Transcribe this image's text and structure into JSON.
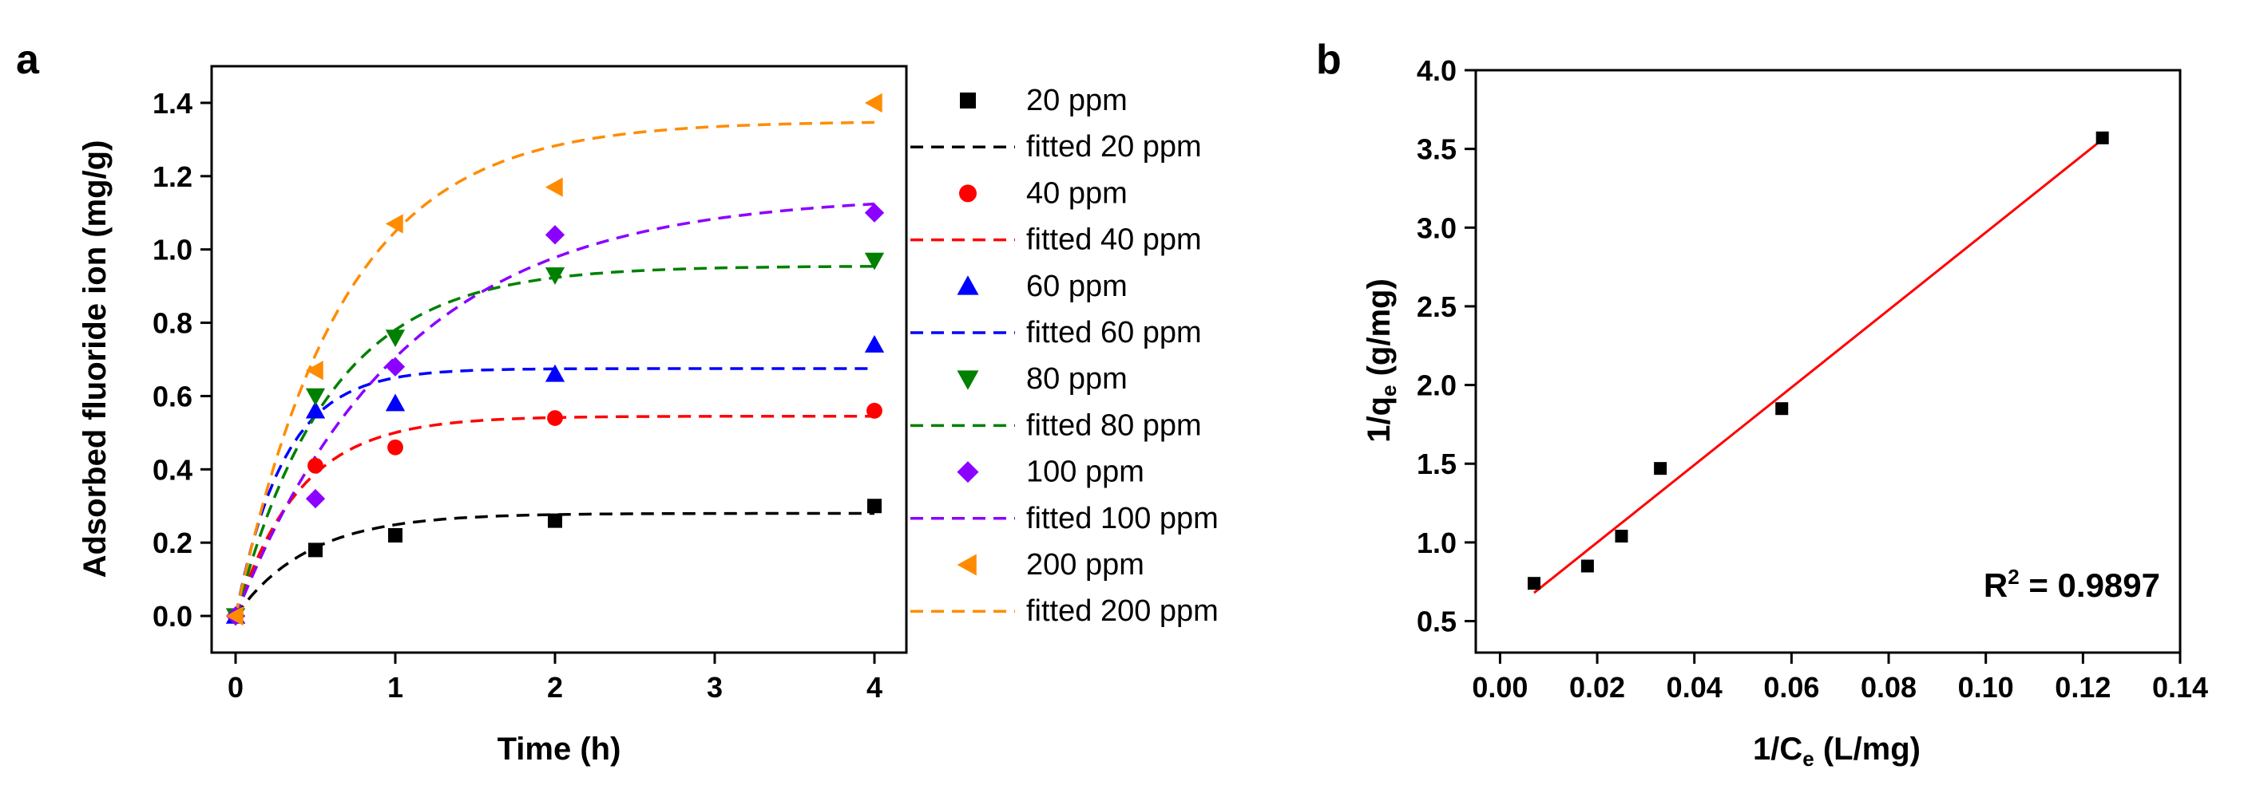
{
  "chart_data": [
    {
      "panel_label": "a",
      "type": "scatter",
      "xlabel": "Time (h)",
      "ylabel": "Adsorbed fluoride ion (mg/g)",
      "xlim": [
        -0.15,
        4.2
      ],
      "ylim": [
        -0.1,
        1.5
      ],
      "x_ticks": [
        0,
        1,
        2,
        3,
        4
      ],
      "x_tick_labels": [
        "0",
        "1",
        "2",
        "3",
        "4"
      ],
      "y_ticks": [
        0.0,
        0.2,
        0.4,
        0.6,
        0.8,
        1.0,
        1.2,
        1.4
      ],
      "y_tick_labels": [
        "0.0",
        "0.2",
        "0.4",
        "0.6",
        "0.8",
        "1.0",
        "1.2",
        "1.4"
      ],
      "series": [
        {
          "name": "20 ppm",
          "fit_name": "fitted 20 ppm",
          "marker": "square",
          "color": "#000000",
          "x": [
            0,
            0.5,
            1,
            2,
            4
          ],
          "y": [
            0.0,
            0.18,
            0.22,
            0.26,
            0.3
          ],
          "fit_qe": 0.28,
          "fit_k": 2.2
        },
        {
          "name": "40 ppm",
          "fit_name": "fitted 40 ppm",
          "marker": "circle",
          "color": "#ff0000",
          "x": [
            0,
            0.5,
            1,
            2,
            4
          ],
          "y": [
            0.0,
            0.41,
            0.46,
            0.54,
            0.56
          ],
          "fit_qe": 0.545,
          "fit_k": 2.5
        },
        {
          "name": "60 ppm",
          "fit_name": "fitted 60 ppm",
          "marker": "triangle-up",
          "color": "#0000ff",
          "x": [
            0,
            0.5,
            1,
            2,
            4
          ],
          "y": [
            0.0,
            0.56,
            0.58,
            0.66,
            0.74
          ],
          "fit_qe": 0.675,
          "fit_k": 3.3
        },
        {
          "name": "80 ppm",
          "fit_name": "fitted 80 ppm",
          "marker": "triangle-down",
          "color": "#008000",
          "x": [
            0,
            0.5,
            1,
            2,
            4
          ],
          "y": [
            0.0,
            0.6,
            0.76,
            0.93,
            0.97
          ],
          "fit_qe": 0.955,
          "fit_k": 1.7
        },
        {
          "name": "100 ppm",
          "fit_name": "fitted 100 ppm",
          "marker": "diamond",
          "color": "#8b00ff",
          "x": [
            0,
            0.5,
            1,
            2,
            4
          ],
          "y": [
            0.0,
            0.32,
            0.68,
            1.04,
            1.1
          ],
          "fit_qe": 1.15,
          "fit_k": 0.95
        },
        {
          "name": "200 ppm",
          "fit_name": "fitted 200 ppm",
          "marker": "triangle-left",
          "color": "#ff8c00",
          "x": [
            0,
            0.5,
            1,
            2,
            4
          ],
          "y": [
            0.0,
            0.67,
            1.07,
            1.17,
            1.4
          ],
          "fit_qe": 1.35,
          "fit_k": 1.5
        }
      ]
    },
    {
      "panel_label": "b",
      "type": "scatter",
      "xlabel_main": "1/C",
      "xlabel_sub": "e",
      "xlabel_rest": " (L/mg)",
      "ylabel_main": "1/q",
      "ylabel_sub": "e",
      "ylabel_rest": " (g/mg)",
      "xlim": [
        -0.005,
        0.14
      ],
      "ylim": [
        0.3,
        4.0
      ],
      "x_ticks": [
        0.0,
        0.02,
        0.04,
        0.06,
        0.08,
        0.1,
        0.12,
        0.14
      ],
      "x_tick_labels": [
        "0.00",
        "0.02",
        "0.04",
        "0.06",
        "0.08",
        "0.10",
        "0.12",
        "0.14"
      ],
      "y_ticks": [
        0.5,
        1.0,
        1.5,
        2.0,
        2.5,
        3.0,
        3.5,
        4.0
      ],
      "y_tick_labels": [
        "0.5",
        "1.0",
        "1.5",
        "2.0",
        "2.5",
        "3.0",
        "3.5",
        "4.0"
      ],
      "points": {
        "x": [
          0.007,
          0.018,
          0.025,
          0.033,
          0.058,
          0.124
        ],
        "y": [
          0.74,
          0.85,
          1.04,
          1.47,
          1.85,
          3.57
        ]
      },
      "fit_line": {
        "x": [
          0.007,
          0.124
        ],
        "y": [
          0.68,
          3.56
        ],
        "color": "#ff0000"
      },
      "annotation_main": "R",
      "annotation_sup": "2",
      "annotation_rest": " = 0.9897"
    }
  ]
}
